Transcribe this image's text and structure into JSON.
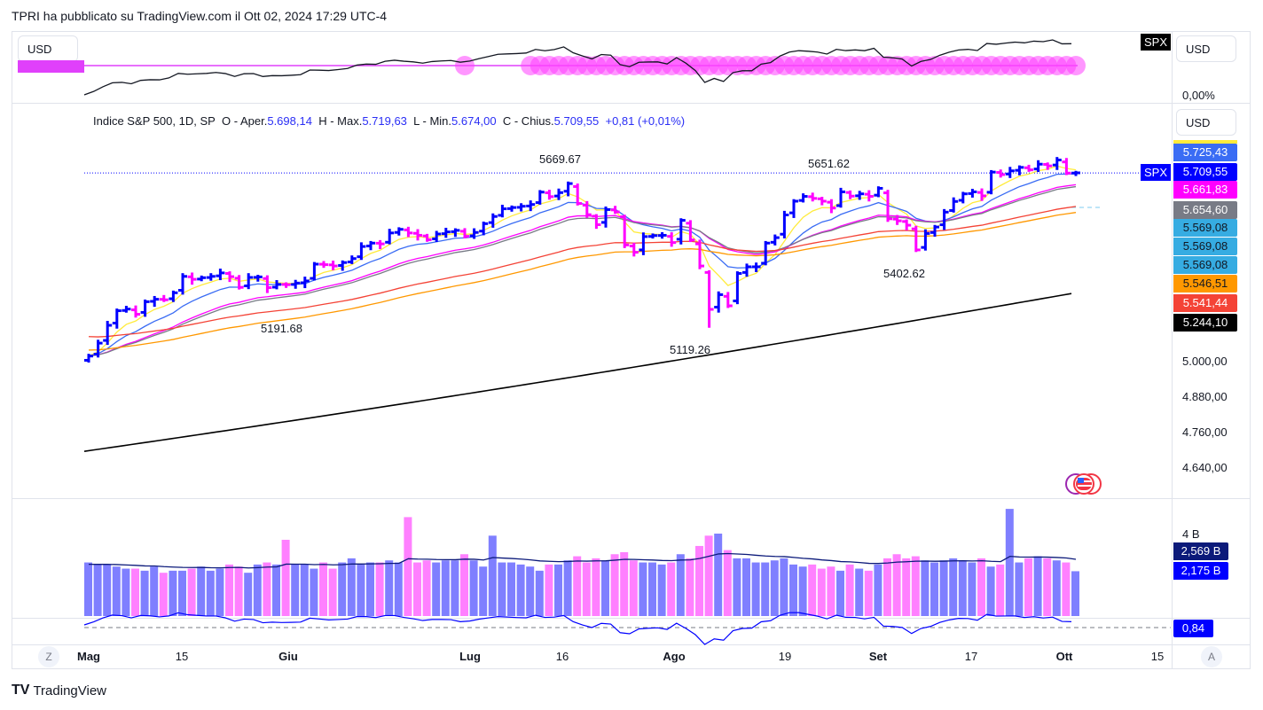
{
  "publish_line": "TPRI ha pubblicato su TradingView.com il Ott 02, 2024 17:29 UTC-4",
  "currency_buttons": [
    "USD",
    "USD",
    "USD"
  ],
  "top_pane": {
    "symbol_tag": "SPX",
    "axis_label": "0,00%",
    "line_color": "#131722",
    "level_color": "#e040fb",
    "signal_single_index": 40,
    "signal_from_index": 47
  },
  "legend": {
    "title": "Indice S&P 500, 1D, SP",
    "open_label": "O - Aper.",
    "open": "5.698,14",
    "high_label": "H - Max.",
    "high": "5.719,63",
    "low_label": "L - Min.",
    "low": "5.674,00",
    "close_label": "C - Chius.",
    "close": "5.709,55",
    "change": "+0,81 (+0,01%)"
  },
  "price_tag": "SPX",
  "price_badges": [
    {
      "text": "5.725,43",
      "bg": "#3a6cf4",
      "fg": "#ffffff"
    },
    {
      "text": "5.709,55",
      "bg": "#0000ff",
      "fg": "#ffffff"
    },
    {
      "text": "5.661,83",
      "bg": "#ff00ff",
      "fg": "#ffffff"
    },
    {
      "text": "5.654,60",
      "bg": "#787b86",
      "fg": "#ffffff"
    },
    {
      "text": "5.569,08",
      "bg": "#36ace2",
      "fg": "#131722"
    },
    {
      "text": "5.569,08",
      "bg": "#36ace2",
      "fg": "#131722"
    },
    {
      "text": "5.569,08",
      "bg": "#36ace2",
      "fg": "#131722"
    },
    {
      "text": "5.546,51",
      "bg": "#ff9800",
      "fg": "#131722"
    },
    {
      "text": "5.541,44",
      "bg": "#f44336",
      "fg": "#ffffff"
    },
    {
      "text": "5.244,10",
      "bg": "#000000",
      "fg": "#ffffff"
    }
  ],
  "price_axis": [
    "5.000,00",
    "4.880,00",
    "4.760,00",
    "4.640,00"
  ],
  "annotations": [
    "5669.67",
    "5651.62",
    "5191.68",
    "5119.26",
    "5402.62"
  ],
  "volume_pane": {
    "axis_label": "4 B",
    "ma_badge": "2,569 B",
    "vol_badge": "2,175 B",
    "up_color": "#7f7fff",
    "down_color": "#ff80ff",
    "ma_color": "#0c1a7a"
  },
  "osc_pane": {
    "badge": "0,84"
  },
  "time_axis": [
    {
      "label": "Mag",
      "bold": true
    },
    {
      "label": "15",
      "bold": false
    },
    {
      "label": "Giu",
      "bold": true
    },
    {
      "label": "Lug",
      "bold": true
    },
    {
      "label": "16",
      "bold": false
    },
    {
      "label": "Ago",
      "bold": true
    },
    {
      "label": "19",
      "bold": false
    },
    {
      "label": "Set",
      "bold": true
    },
    {
      "label": "17",
      "bold": false
    },
    {
      "label": "Ott",
      "bold": true
    },
    {
      "label": "15",
      "bold": false
    }
  ],
  "buttons": {
    "zoom": "Z",
    "auto": "A"
  },
  "brand": "TradingView",
  "chart_data": {
    "type": "ohlc",
    "title": "Indice S&P 500, 1D, SP",
    "x_range": [
      "2024-05-01",
      "2024-10-02"
    ],
    "y_scale": "log",
    "ylim": [
      4600,
      5760
    ],
    "up_color": "#0000ff",
    "down_color": "#ff00ff",
    "closes": [
      5018,
      5064,
      5128,
      5181,
      5187,
      5168,
      5214,
      5223,
      5221,
      5247,
      5308,
      5297,
      5303,
      5308,
      5321,
      5307,
      5267,
      5304,
      5306,
      5266,
      5278,
      5277,
      5283,
      5291,
      5354,
      5352,
      5347,
      5360,
      5375,
      5421,
      5434,
      5431,
      5473,
      5487,
      5473,
      5464,
      5447,
      5469,
      5477,
      5483,
      5460,
      5475,
      5509,
      5537,
      5567,
      5572,
      5577,
      5584,
      5633,
      5615,
      5631,
      5667,
      5588,
      5544,
      5505,
      5564,
      5555,
      5427,
      5399,
      5459,
      5463,
      5464,
      5436,
      5522,
      5446,
      5347,
      5186,
      5240,
      5199,
      5319,
      5344,
      5344,
      5434,
      5455,
      5543,
      5597,
      5616,
      5608,
      5597,
      5570,
      5634,
      5617,
      5626,
      5616,
      5648,
      5528,
      5520,
      5503,
      5408,
      5471,
      5496,
      5554,
      5596,
      5626,
      5634,
      5618,
      5713,
      5703,
      5718,
      5732,
      5722,
      5745,
      5738,
      5762,
      5709,
      5710
    ],
    "volumes_B": [
      2.6,
      2.5,
      2.5,
      2.4,
      2.3,
      2.3,
      2.2,
      2.4,
      2.1,
      2.2,
      2.2,
      2.3,
      2.4,
      2.2,
      2.3,
      2.5,
      2.4,
      2.1,
      2.5,
      2.6,
      2.5,
      3.7,
      2.5,
      2.5,
      2.3,
      2.6,
      2.3,
      2.6,
      2.8,
      2.5,
      2.6,
      2.6,
      2.7,
      2.6,
      4.8,
      2.6,
      2.7,
      2.6,
      2.7,
      2.7,
      3.0,
      2.7,
      2.4,
      3.9,
      2.6,
      2.6,
      2.5,
      2.4,
      2.2,
      2.5,
      2.5,
      2.7,
      2.9,
      2.6,
      2.8,
      2.7,
      3.0,
      3.1,
      2.7,
      2.6,
      2.6,
      2.5,
      2.6,
      3.0,
      2.8,
      3.4,
      3.9,
      4.0,
      3.2,
      2.8,
      2.8,
      2.6,
      2.6,
      2.7,
      2.8,
      2.5,
      2.4,
      2.5,
      2.3,
      2.4,
      2.2,
      2.5,
      2.3,
      2.2,
      2.5,
      2.8,
      3.0,
      2.8,
      2.9,
      2.7,
      2.6,
      2.7,
      2.8,
      2.7,
      2.6,
      2.8,
      2.4,
      2.5,
      5.2,
      2.6,
      2.8,
      2.9,
      2.8,
      2.7,
      2.6,
      2.175
    ],
    "moving_averages": [
      {
        "name": "fast",
        "kind": "ema",
        "period": 5,
        "color": "#ffeb3b"
      },
      {
        "name": "ema10",
        "kind": "ema",
        "period": 10,
        "color": "#3a6cf4"
      },
      {
        "name": "ema20",
        "kind": "ema",
        "period": 20,
        "color": "#ff00ff"
      },
      {
        "name": "ema21",
        "kind": "ema",
        "period": 22,
        "color": "#787b86"
      },
      {
        "name": "ema50",
        "kind": "ema",
        "period": 50,
        "color": "#f44336",
        "seed": 5090
      },
      {
        "name": "sma50",
        "kind": "ema",
        "period": 60,
        "color": "#ff9800",
        "seed": 5040
      },
      {
        "name": "ma200",
        "kind": "linear",
        "from": 4692,
        "to": 5244.1,
        "color": "#000000"
      }
    ],
    "last_price": 5709.55
  }
}
